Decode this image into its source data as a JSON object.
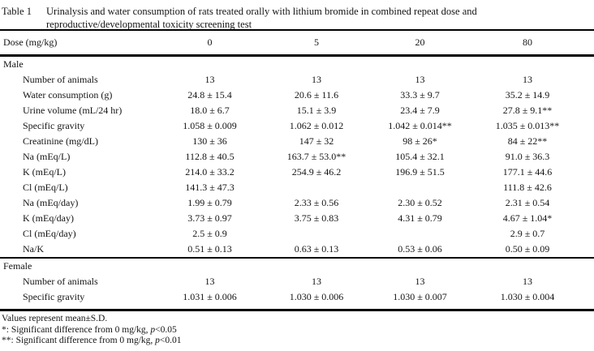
{
  "title": {
    "label": "Table 1",
    "caption_line1": "Urinalysis and water consumption of rats treated orally with lithium bromide in combined repeat dose and",
    "caption_line2": "reproductive/developmental toxicity screening test"
  },
  "header": {
    "label": "Dose (mg/kg)",
    "doses": [
      "0",
      "5",
      "20",
      "80"
    ]
  },
  "sections": [
    {
      "name": "Male",
      "rows": [
        {
          "label": "Number of animals",
          "values": [
            "13",
            "13",
            "13",
            "13"
          ]
        },
        {
          "label": "Water consumption (g)",
          "values": [
            "24.8 ± 15.4",
            "20.6 ± 11.6",
            "33.3 ± 9.7",
            "35.2 ± 14.9"
          ]
        },
        {
          "label": "Urine volume (mL/24 hr)",
          "values": [
            "18.0 ± 6.7",
            "15.1 ± 3.9",
            "23.4 ± 7.9",
            "27.8 ± 9.1**"
          ]
        },
        {
          "label": "Specific gravity",
          "values": [
            "1.058 ± 0.009",
            "1.062 ± 0.012",
            "1.042 ± 0.014**",
            "1.035 ± 0.013**"
          ]
        },
        {
          "label": "Creatinine (mg/dL)",
          "values": [
            "130 ± 36",
            "147 ± 32",
            "98 ± 26*",
            "84 ± 22**"
          ]
        },
        {
          "label": "Na (mEq/L)",
          "values": [
            "112.8 ± 40.5",
            "163.7 ± 53.0**",
            "105.4 ± 32.1",
            "91.0 ± 36.3"
          ]
        },
        {
          "label": "K (mEq/L)",
          "values": [
            "214.0 ± 33.2",
            "254.9 ± 46.2",
            "196.9 ± 51.5",
            "177.1 ± 44.6"
          ]
        },
        {
          "label": "Cl (mEq/L)",
          "values": [
            "141.3 ± 47.3",
            "",
            "",
            "111.8 ± 42.6"
          ]
        },
        {
          "label": "Na (mEq/day)",
          "values": [
            "1.99 ± 0.79",
            "2.33 ± 0.56",
            "2.30 ± 0.52",
            "2.31 ± 0.54"
          ]
        },
        {
          "label": "K (mEq/day)",
          "values": [
            "3.73 ± 0.97",
            "3.75 ± 0.83",
            "4.31 ± 0.79",
            "4.67 ± 1.04*"
          ]
        },
        {
          "label": "Cl (mEq/day)",
          "values": [
            "2.5 ± 0.9",
            "",
            "",
            "2.9 ± 0.7"
          ]
        },
        {
          "label": "Na/K",
          "values": [
            "0.51 ± 0.13",
            "0.63 ± 0.13",
            "0.53 ± 0.06",
            "0.50 ± 0.09"
          ]
        }
      ]
    },
    {
      "name": "Female",
      "rows": [
        {
          "label": "Number of animals",
          "values": [
            "13",
            "13",
            "13",
            "13"
          ]
        },
        {
          "label": "Specific gravity",
          "values": [
            "1.031 ± 0.006",
            "1.030 ± 0.006",
            "1.030 ± 0.007",
            "1.030 ± 0.004"
          ]
        }
      ]
    }
  ],
  "footnotes": {
    "line1": "Values represent mean±S.D.",
    "line2_prefix": "*: Significant difference from 0 mg/kg, ",
    "line3_prefix": "**: Significant difference from 0 mg/kg, ",
    "p": "p",
    "line2_suffix": "<0.05",
    "line3_suffix": "<0.01"
  }
}
